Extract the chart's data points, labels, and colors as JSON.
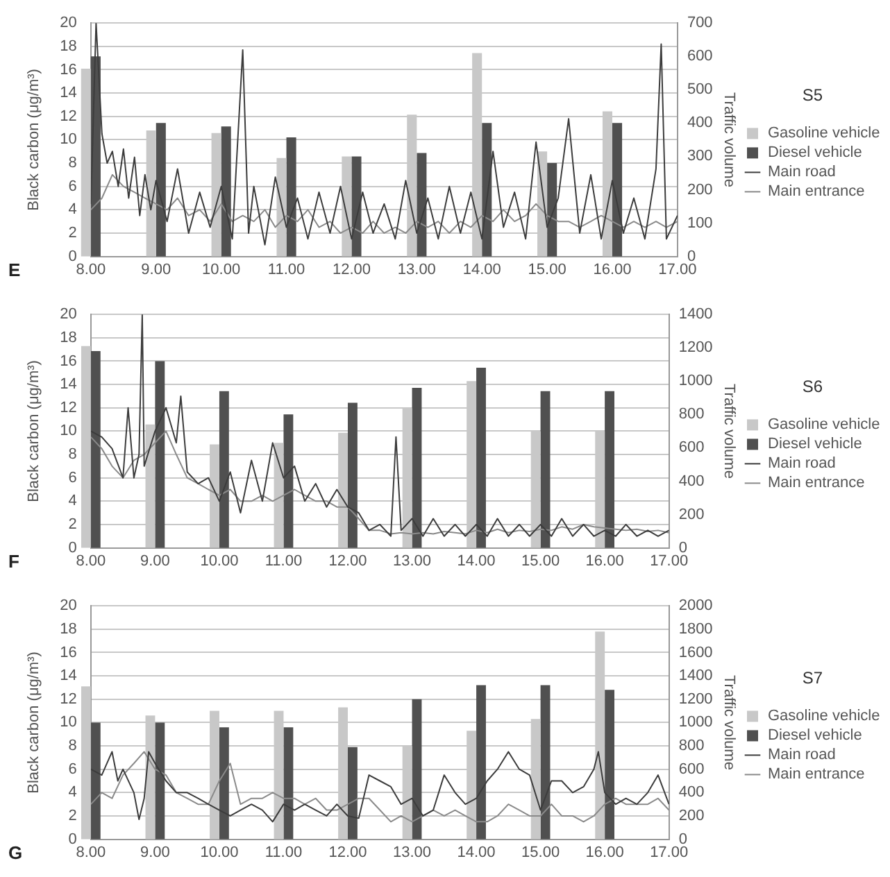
{
  "chart_data": [
    {
      "type": "bar",
      "legend_title": "S5",
      "ylabel": "Black carbon (μg/m³)",
      "y2label": "Traffic volume",
      "annotations": [
        "E"
      ],
      "legend": "right",
      "grid": "y",
      "marker": "none",
      "line_style": "solid",
      "xlim": [
        8,
        17
      ],
      "xticks": [
        {
          "value": 8,
          "label": "8.00"
        },
        {
          "value": 9,
          "label": "9.00"
        },
        {
          "value": 10,
          "label": "10.00"
        },
        {
          "value": 11,
          "label": "11.00"
        },
        {
          "value": 12,
          "label": "12.00"
        },
        {
          "value": 13,
          "label": "13.00"
        },
        {
          "value": 14,
          "label": "14.00"
        },
        {
          "value": 15,
          "label": "15.00"
        },
        {
          "value": 16,
          "label": "16.00"
        },
        {
          "value": 17,
          "label": "17.00"
        }
      ],
      "ylim": [
        0,
        20
      ],
      "yticks": [
        0,
        2,
        4,
        6,
        8,
        10,
        12,
        14,
        16,
        18,
        20
      ],
      "y2lim": [
        0,
        700
      ],
      "y2ticks": [
        0,
        100,
        200,
        300,
        400,
        500,
        600,
        700
      ],
      "series": [
        {
          "name": "Gasoline vehicle",
          "axis": "y2",
          "color": "#c8c8c8",
          "x": [
            8,
            9,
            10,
            11,
            12,
            13,
            14,
            15,
            16
          ],
          "values": [
            563,
            378,
            370,
            295,
            300,
            425,
            610,
            315,
            435
          ]
        },
        {
          "name": "Diesel vehicle",
          "axis": "y2",
          "color": "#505050",
          "x": [
            8,
            9,
            10,
            11,
            12,
            13,
            14,
            15,
            16
          ],
          "values": [
            600,
            400,
            390,
            357,
            300,
            310,
            400,
            280,
            400
          ]
        },
        {
          "name": "Main road",
          "type": "line",
          "color": "#3c3c3c",
          "x": [
            8.0,
            8.08,
            8.17,
            8.25,
            8.33,
            8.42,
            8.5,
            8.58,
            8.67,
            8.75,
            8.83,
            8.92,
            9.0,
            9.17,
            9.33,
            9.5,
            9.67,
            9.83,
            10.0,
            10.17,
            10.33,
            10.42,
            10.5,
            10.67,
            10.83,
            11.0,
            11.17,
            11.33,
            11.5,
            11.67,
            11.83,
            12.0,
            12.17,
            12.33,
            12.5,
            12.67,
            12.83,
            13.0,
            13.17,
            13.33,
            13.5,
            13.67,
            13.83,
            14.0,
            14.17,
            14.33,
            14.5,
            14.67,
            14.83,
            15.0,
            15.17,
            15.33,
            15.5,
            15.67,
            15.83,
            16.0,
            16.17,
            16.33,
            16.5,
            16.67,
            16.75,
            16.83,
            17.0
          ],
          "values": [
            4.5,
            20,
            10.5,
            8,
            9,
            6,
            9.2,
            5,
            8.5,
            3.5,
            7,
            4,
            6.5,
            3,
            7.5,
            2,
            5.5,
            2.5,
            6,
            1.5,
            17.7,
            2,
            6,
            1,
            6.8,
            2.5,
            5,
            1.5,
            5.5,
            2,
            6,
            1.5,
            5.5,
            2,
            4.5,
            1.5,
            6.5,
            2,
            5,
            1.5,
            6,
            2,
            5.5,
            1.5,
            9,
            2.5,
            5.5,
            1.5,
            9.8,
            2.5,
            5,
            11.8,
            2,
            7,
            1.5,
            6.5,
            2,
            5,
            1.5,
            7.5,
            18.2,
            1.5,
            3.5
          ]
        },
        {
          "name": "Main entrance",
          "type": "line",
          "color": "#8a8a8a",
          "x": [
            8.0,
            8.17,
            8.33,
            8.5,
            8.67,
            8.83,
            9.0,
            9.17,
            9.33,
            9.5,
            9.67,
            9.83,
            10.0,
            10.17,
            10.33,
            10.5,
            10.67,
            10.83,
            11.0,
            11.17,
            11.33,
            11.5,
            11.67,
            11.83,
            12.0,
            12.17,
            12.33,
            12.5,
            12.67,
            12.83,
            13.0,
            13.17,
            13.33,
            13.5,
            13.67,
            13.83,
            14.0,
            14.17,
            14.33,
            14.5,
            14.67,
            14.83,
            15.0,
            15.17,
            15.33,
            15.5,
            15.67,
            15.83,
            16.0,
            16.17,
            16.33,
            16.5,
            16.67,
            16.83,
            17.0
          ],
          "values": [
            4,
            5,
            7,
            6,
            5.5,
            5,
            4.5,
            4,
            5,
            3.5,
            4,
            3,
            4.5,
            3,
            3.5,
            3,
            4,
            2.5,
            3.5,
            3,
            4,
            2.5,
            3,
            2,
            2.5,
            2,
            3,
            2,
            2.5,
            2,
            3,
            2.5,
            3,
            2,
            3,
            2.5,
            3.5,
            3,
            4,
            3,
            3.5,
            4.5,
            3.5,
            3,
            3,
            2.5,
            3,
            3.5,
            3,
            2.5,
            3,
            2.5,
            3,
            2.5,
            3
          ]
        }
      ]
    },
    {
      "type": "bar",
      "legend_title": "S6",
      "ylabel": "Black carbon (μg/m³)",
      "y2label": "Traffic volume",
      "annotations": [
        "F"
      ],
      "legend": "right",
      "grid": "y",
      "marker": "none",
      "line_style": "solid",
      "xlim": [
        8,
        17
      ],
      "xticks": [
        {
          "value": 8,
          "label": "8.00"
        },
        {
          "value": 9,
          "label": "9.00"
        },
        {
          "value": 10,
          "label": "10.00"
        },
        {
          "value": 11,
          "label": "11.00"
        },
        {
          "value": 12,
          "label": "12.00"
        },
        {
          "value": 13,
          "label": "13.00"
        },
        {
          "value": 14,
          "label": "14.00"
        },
        {
          "value": 15,
          "label": "15.00"
        },
        {
          "value": 16,
          "label": "16.00"
        },
        {
          "value": 17,
          "label": "17.00"
        }
      ],
      "ylim": [
        0,
        20
      ],
      "yticks": [
        0,
        2,
        4,
        6,
        8,
        10,
        12,
        14,
        16,
        18,
        20
      ],
      "y2lim": [
        0,
        1400
      ],
      "y2ticks": [
        0,
        200,
        400,
        600,
        800,
        1000,
        1200,
        1400
      ],
      "series": [
        {
          "name": "Gasoline vehicle",
          "axis": "y2",
          "color": "#c8c8c8",
          "x": [
            8,
            9,
            10,
            11,
            12,
            13,
            14,
            15,
            16
          ],
          "values": [
            1210,
            740,
            620,
            630,
            690,
            840,
            1000,
            700,
            700
          ]
        },
        {
          "name": "Diesel vehicle",
          "axis": "y2",
          "color": "#505050",
          "x": [
            8,
            9,
            10,
            11,
            12,
            13,
            14,
            15,
            16
          ],
          "values": [
            1180,
            1120,
            940,
            800,
            870,
            960,
            1080,
            940,
            940
          ]
        },
        {
          "name": "Main road",
          "type": "line",
          "color": "#3c3c3c",
          "x": [
            8.0,
            8.17,
            8.33,
            8.5,
            8.58,
            8.67,
            8.75,
            8.8,
            8.83,
            9.0,
            9.17,
            9.33,
            9.4,
            9.5,
            9.67,
            9.83,
            10.0,
            10.17,
            10.33,
            10.5,
            10.67,
            10.83,
            11.0,
            11.17,
            11.33,
            11.5,
            11.67,
            11.83,
            12.0,
            12.17,
            12.33,
            12.5,
            12.67,
            12.75,
            12.83,
            13.0,
            13.17,
            13.33,
            13.5,
            13.67,
            13.83,
            14.0,
            14.17,
            14.33,
            14.5,
            14.67,
            14.83,
            15.0,
            15.17,
            15.33,
            15.5,
            15.67,
            15.83,
            16.0,
            16.17,
            16.33,
            16.5,
            16.67,
            16.83,
            17.0
          ],
          "values": [
            10,
            9.5,
            8.5,
            6,
            12,
            6,
            8,
            20,
            7,
            10,
            12,
            9,
            13,
            6.5,
            5.5,
            6,
            4,
            6.5,
            3,
            7.5,
            4,
            9,
            6,
            7,
            4,
            5.5,
            3.5,
            5,
            3.5,
            3,
            1.5,
            2,
            1,
            9.5,
            1.5,
            2.5,
            1,
            2.5,
            1,
            2,
            1,
            2,
            1,
            2.5,
            1,
            2,
            1,
            2,
            1,
            2.5,
            1,
            2,
            1,
            1.5,
            1,
            2,
            1,
            1.5,
            1,
            1.5
          ]
        },
        {
          "name": "Main entrance",
          "type": "line",
          "color": "#8a8a8a",
          "x": [
            8.0,
            8.17,
            8.33,
            8.5,
            8.67,
            8.83,
            9.0,
            9.17,
            9.33,
            9.5,
            9.67,
            9.83,
            10.0,
            10.17,
            10.33,
            10.5,
            10.67,
            10.83,
            11.0,
            11.17,
            11.33,
            11.5,
            11.67,
            11.83,
            12.0,
            12.17,
            12.33,
            12.5,
            12.67,
            12.83,
            13.0,
            13.17,
            13.33,
            13.5,
            13.67,
            13.83,
            14.0,
            14.17,
            14.33,
            14.5,
            14.67,
            14.83,
            15.0,
            15.17,
            15.33,
            15.5,
            15.67,
            15.83,
            16.0,
            16.17,
            16.33,
            16.5,
            16.67,
            16.83,
            17.0
          ],
          "values": [
            9.5,
            8.5,
            7,
            6,
            7.5,
            8,
            9,
            10,
            8,
            6,
            5.5,
            5,
            4.5,
            5,
            4,
            4,
            4.5,
            4,
            4.5,
            5,
            4.5,
            4,
            4,
            3.5,
            3.5,
            2.5,
            1.5,
            1.5,
            1.2,
            1.3,
            1.2,
            1.3,
            1.2,
            1.4,
            1.3,
            1.2,
            1.5,
            1.3,
            1.6,
            1.3,
            1.5,
            1.4,
            1.6,
            1.5,
            1.8,
            1.6,
            2,
            1.8,
            1.7,
            1.6,
            1.5,
            1.6,
            1.4,
            1.5,
            1.3
          ]
        }
      ]
    },
    {
      "type": "bar",
      "legend_title": "S7",
      "ylabel": "Black carbon (μg/m³)",
      "y2label": "Traffic volume",
      "annotations": [
        "G"
      ],
      "legend": "right",
      "grid": "y",
      "marker": "none",
      "line_style": "solid",
      "xlim": [
        8,
        17
      ],
      "xticks": [
        {
          "value": 8,
          "label": "8.00"
        },
        {
          "value": 9,
          "label": "9.00"
        },
        {
          "value": 10,
          "label": "10.00"
        },
        {
          "value": 11,
          "label": "11.00"
        },
        {
          "value": 12,
          "label": "12.00"
        },
        {
          "value": 13,
          "label": "13.00"
        },
        {
          "value": 14,
          "label": "14.00"
        },
        {
          "value": 15,
          "label": "15.00"
        },
        {
          "value": 16,
          "label": "16.00"
        },
        {
          "value": 17,
          "label": "17.00"
        }
      ],
      "ylim": [
        0,
        20
      ],
      "yticks": [
        0,
        2,
        4,
        6,
        8,
        10,
        12,
        14,
        16,
        18,
        20
      ],
      "y2lim": [
        0,
        2000
      ],
      "y2ticks": [
        0,
        200,
        400,
        600,
        800,
        1000,
        1200,
        1400,
        1600,
        1800,
        2000
      ],
      "series": [
        {
          "name": "Gasoline vehicle",
          "axis": "y2",
          "color": "#c8c8c8",
          "x": [
            8,
            9,
            10,
            11,
            12,
            13,
            14,
            15,
            16
          ],
          "values": [
            1310,
            1060,
            1100,
            1100,
            1130,
            800,
            930,
            1030,
            1780
          ]
        },
        {
          "name": "Diesel vehicle",
          "axis": "y2",
          "color": "#505050",
          "x": [
            8,
            9,
            10,
            11,
            12,
            13,
            14,
            15,
            16
          ],
          "values": [
            1000,
            1000,
            960,
            960,
            790,
            1200,
            1320,
            1320,
            1280
          ]
        },
        {
          "name": "Main road",
          "type": "line",
          "color": "#3c3c3c",
          "x": [
            8.0,
            8.17,
            8.33,
            8.42,
            8.5,
            8.67,
            8.75,
            8.83,
            8.9,
            9.0,
            9.17,
            9.33,
            9.5,
            9.67,
            9.83,
            10.0,
            10.17,
            10.33,
            10.5,
            10.67,
            10.83,
            11.0,
            11.17,
            11.33,
            11.5,
            11.67,
            11.83,
            12.0,
            12.17,
            12.33,
            12.5,
            12.67,
            12.83,
            13.0,
            13.17,
            13.33,
            13.5,
            13.67,
            13.83,
            14.0,
            14.17,
            14.33,
            14.5,
            14.67,
            14.83,
            15.0,
            15.17,
            15.33,
            15.5,
            15.67,
            15.83,
            15.9,
            16.0,
            16.17,
            16.33,
            16.5,
            16.67,
            16.83,
            17.0
          ],
          "values": [
            6,
            5.5,
            7.5,
            5,
            6,
            4,
            1.7,
            3.5,
            7.5,
            6.5,
            5,
            4,
            4,
            3.5,
            3,
            2.5,
            2,
            2.5,
            3,
            2.5,
            1.5,
            3,
            2.5,
            3,
            2.5,
            2,
            3,
            2,
            1.8,
            5.5,
            5,
            4.5,
            3,
            3.5,
            2,
            2.5,
            5.5,
            4,
            3,
            3.5,
            5,
            6,
            7.5,
            6,
            5.5,
            2.5,
            5,
            5,
            4,
            4.5,
            6,
            7.5,
            4,
            3,
            3.5,
            3,
            4,
            5.5,
            3
          ]
        },
        {
          "name": "Main entrance",
          "type": "line",
          "color": "#8a8a8a",
          "x": [
            8.0,
            8.17,
            8.33,
            8.5,
            8.67,
            8.83,
            9.0,
            9.17,
            9.33,
            9.5,
            9.67,
            9.83,
            10.0,
            10.17,
            10.33,
            10.5,
            10.67,
            10.83,
            11.0,
            11.17,
            11.33,
            11.5,
            11.67,
            11.83,
            12.0,
            12.17,
            12.33,
            12.5,
            12.67,
            12.83,
            13.0,
            13.17,
            13.33,
            13.5,
            13.67,
            13.83,
            14.0,
            14.17,
            14.33,
            14.5,
            14.67,
            14.83,
            15.0,
            15.17,
            15.33,
            15.5,
            15.67,
            15.83,
            16.0,
            16.17,
            16.33,
            16.5,
            16.67,
            16.83,
            17.0
          ],
          "values": [
            3,
            4,
            3.5,
            5.5,
            6.5,
            7.5,
            6,
            5.5,
            4,
            3.5,
            3,
            3,
            5,
            6.5,
            3,
            3.5,
            3.5,
            4,
            3.5,
            3.5,
            3,
            3.5,
            2.5,
            2.5,
            3,
            3.5,
            3.5,
            2.5,
            1.5,
            2,
            1.5,
            2,
            2.5,
            2,
            2.5,
            2,
            1.5,
            1.5,
            2,
            3,
            2.5,
            2,
            2,
            3,
            2,
            2,
            1.5,
            2,
            3,
            3.5,
            3,
            3,
            3,
            3.5,
            2.5
          ]
        }
      ]
    }
  ]
}
